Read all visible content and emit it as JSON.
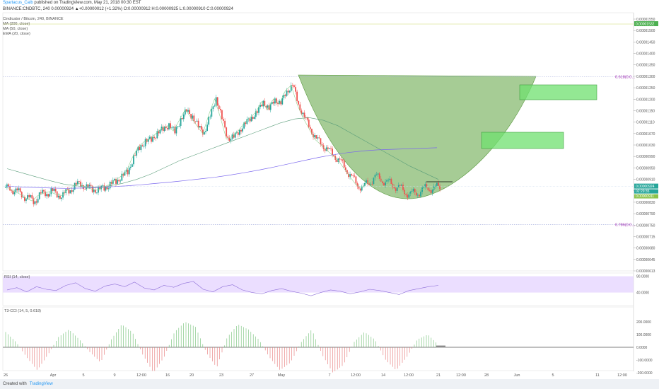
{
  "header": {
    "author": "Spartacus_Calb",
    "published_text": "published on TradingView.com, May 21, 2018 00:30 EST",
    "quote_line": "BINANCE:CNDBTC, 240  0.00000924 ▲+0.00000012 (+1.32%) O:0.00000912 H:0.00000925 L:0.00000910 C:0.00000924"
  },
  "legend": {
    "symbol": "Cindicator / Bitcoin, 240, BINANCE",
    "indicators": [
      "MA (200, close)",
      "MA (50, close)",
      "EMA (20, close)"
    ]
  },
  "rsi_label": "RSI (14, close)",
  "t3_label": "T3-CCI (14, 5, 0.618)",
  "footer": {
    "created_with": "Created with",
    "brand": "TradingView"
  },
  "colors": {
    "up": "#26a69a",
    "down": "#ef5350",
    "ma200": "#7b68ee",
    "ma50": "#5a9d7a",
    "ema20": "#8fd18f",
    "bowl": "#6aaa4e",
    "target_box": "#6fe06f",
    "fib": "#9c27b0",
    "rsi_fill": "#e6d6ff"
  },
  "chart_data": {
    "type": "line",
    "title": "",
    "price_axis": {
      "ticks": [
        "0.00001550",
        "0.00001500",
        "0.00001450",
        "0.00001400",
        "0.00001350",
        "0.00001300",
        "0.00001250",
        "0.00001200",
        "0.00001150",
        "0.00001110",
        "0.00001070",
        "0.00001030",
        "0.00000990",
        "0.00000950",
        "0.00000910",
        "0.00000870",
        "0.00000830",
        "0.00000790",
        "0.00000750",
        "0.00000715",
        "0.00000680",
        "0.00000645",
        "0.00000613"
      ],
      "last_price": "0.00000924",
      "countdown": "02:29:35",
      "secondary_price": "0.00000911",
      "top_marker": "0.00001532"
    },
    "time_axis": [
      "26",
      "Apr",
      "5",
      "9",
      "12:00",
      "16",
      "20",
      "23",
      "27",
      "May",
      "7",
      "12:00",
      "14",
      "12:00",
      "21",
      "12:00",
      "28",
      "Jun",
      "5",
      "11",
      "12:00"
    ],
    "fib_levels": [
      {
        "label": "0.618(0.0…",
        "price": 1.332e-05
      },
      {
        "label": "0.786(0.0…",
        "price": 7.82e-06
      }
    ],
    "ylim": [
      6.1e-06,
      1.57e-05
    ],
    "series": [
      {
        "name": "Close",
        "values": [
          9.2e-06,
          9.05e-06,
          8.95e-06,
          8.8e-06,
          8.7e-06,
          8.9e-06,
          9e-06,
          9.05e-06,
          8.95e-06,
          8.9e-06,
          9.1e-06,
          9.25e-06,
          9.35e-06,
          9.2e-06,
          9.15e-06,
          9.1e-06,
          9.2e-06,
          9.3e-06,
          9.45e-06,
          9.6e-06,
          9.8e-06,
          1.03e-05,
          1.07e-05,
          1.09e-05,
          1.1e-05,
          1.12e-05,
          1.14e-05,
          1.15e-05,
          1.13e-05,
          1.17e-05,
          1.21e-05,
          1.18e-05,
          1.15e-05,
          1.12e-05,
          1.19e-05,
          1.25e-05,
          1.18e-05,
          1.1e-05,
          1.11e-05,
          1.13e-05,
          1.16e-05,
          1.18e-05,
          1.2e-05,
          1.24e-05,
          1.21e-05,
          1.25e-05,
          1.23e-05,
          1.28e-05,
          1.3e-05,
          1.23e-05,
          1.18e-05,
          1.14e-05,
          1.1e-05,
          1.08e-05,
          1.06e-05,
          1.04e-05,
          1.02e-05,
          9.9e-06,
          9.6e-06,
          9.3e-06,
          9.2e-06,
          9.4e-06,
          9.6e-06,
          9.5e-06,
          9.4e-06,
          9.3e-06,
          9.2e-06,
          9.05e-06,
          8.95e-06,
          9e-06,
          9.1e-06,
          9.2e-06,
          9.15e-06,
          9.24e-06
        ]
      },
      {
        "name": "MA (200, close)",
        "values": [
          9.25e-06,
          9.22e-06,
          9.2e-06,
          9.18e-06,
          9.17e-06,
          9.18e-06,
          9.2e-06,
          9.23e-06,
          9.26e-06,
          9.3e-06,
          9.35e-06,
          9.4e-06,
          9.46e-06,
          9.52e-06,
          9.58e-06,
          9.66e-06,
          9.75e-06,
          9.85e-06,
          9.96e-06,
          1.008e-05,
          1.02e-05,
          1.032e-05,
          1.042e-05,
          1.05e-05,
          1.056e-05,
          1.06e-05,
          1.062e-05,
          1.064e-05,
          1.066e-05,
          1.068e-05
        ]
      },
      {
        "name": "MA (50, close)",
        "values": [
          9.9e-06,
          9.75e-06,
          9.6e-06,
          9.45e-06,
          9.32e-06,
          9.25e-06,
          9.22e-06,
          9.25e-06,
          9.35e-06,
          9.5e-06,
          9.7e-06,
          9.95e-06,
          1.02e-05,
          1.04e-05,
          1.06e-05,
          1.08e-05,
          1.1e-05,
          1.12e-05,
          1.14e-05,
          1.16e-05,
          1.175e-05,
          1.18e-05,
          1.17e-05,
          1.15e-05,
          1.12e-05,
          1.09e-05,
          1.06e-05,
          1.03e-05,
          1e-05,
          9.75e-06,
          9.5e-06
        ]
      },
      {
        "name": "RSI (14, close)",
        "values": [
          48,
          55,
          42,
          58,
          50,
          46,
          62,
          70,
          52,
          44,
          60,
          66,
          58,
          72,
          54,
          48,
          62,
          56,
          68,
          74,
          50,
          42,
          58,
          64,
          48,
          40,
          36,
          46,
          52,
          44,
          38,
          30,
          40,
          48,
          44,
          36,
          42,
          50,
          46,
          40,
          34,
          46,
          52,
          58,
          62
        ]
      },
      {
        "name": "T3-CCI (14, 5, 0.618)",
        "values": [
          120,
          40,
          -80,
          -180,
          -60,
          80,
          140,
          60,
          -40,
          -120,
          60,
          180,
          120,
          -60,
          -200,
          -80,
          120,
          200,
          160,
          -40,
          -160,
          80,
          180,
          140,
          60,
          -80,
          -180,
          -120,
          40,
          140,
          -60,
          -200,
          -140,
          40,
          120,
          60,
          -100,
          -180,
          -80,
          60,
          100,
          20
        ]
      }
    ]
  }
}
